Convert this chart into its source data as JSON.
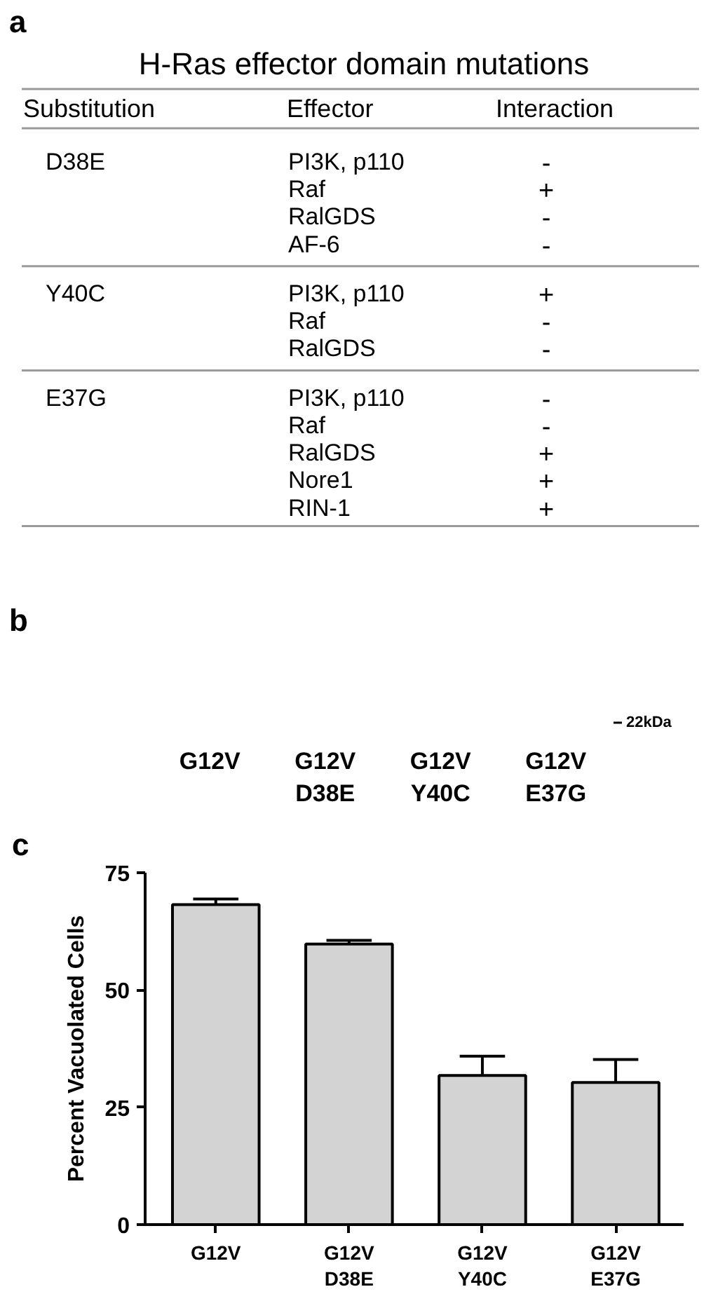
{
  "chart_data": [
    {
      "type": "other",
      "title": "H-Ras effector domain mutations",
      "categories": [
        "Substitution",
        "Effector",
        "Interaction"
      ],
      "cell_labels": [
        [
          "D38E",
          "PI3K, p110",
          "-"
        ],
        [
          null,
          "Raf",
          "+"
        ],
        [
          null,
          "RalGDS",
          "-"
        ],
        [
          null,
          "AF-6",
          "-"
        ],
        [
          "Y40C",
          "PI3K, p110",
          "+"
        ],
        [
          null,
          "Raf",
          "-"
        ],
        [
          null,
          "RalGDS",
          "-"
        ],
        [
          "E37G",
          "PI3K, p110",
          "-"
        ],
        [
          null,
          "Raf",
          "-"
        ],
        [
          null,
          "RalGDS",
          "+"
        ],
        [
          null,
          "Nore1",
          "+"
        ],
        [
          null,
          "RIN-1",
          "+"
        ]
      ],
      "annotations": [
        "a"
      ]
    },
    {
      "type": "other",
      "categories": [
        "G12V",
        "G12V\nD38E",
        "G12V\nY40C",
        "G12V\nE37G"
      ],
      "annotations": [
        "b",
        "22kDa"
      ]
    },
    {
      "type": "bar",
      "categories": [
        "G12V",
        "G12V\nD38E",
        "G12V\nY40C",
        "G12V\nE37G"
      ],
      "values": [
        68.2,
        59.8,
        31.8,
        30.3
      ],
      "errors": [
        [
          68.2,
          69.4
        ],
        [
          59.8,
          60.6
        ],
        [
          31.8,
          35.9
        ],
        [
          30.3,
          35.2
        ]
      ],
      "color": "#d3d3d3",
      "ylim": [
        0,
        75
      ],
      "yticks": [
        0,
        25,
        50,
        75
      ],
      "ylabel": "Percent Vacuolated Cells",
      "annotations": [
        "c"
      ]
    }
  ]
}
